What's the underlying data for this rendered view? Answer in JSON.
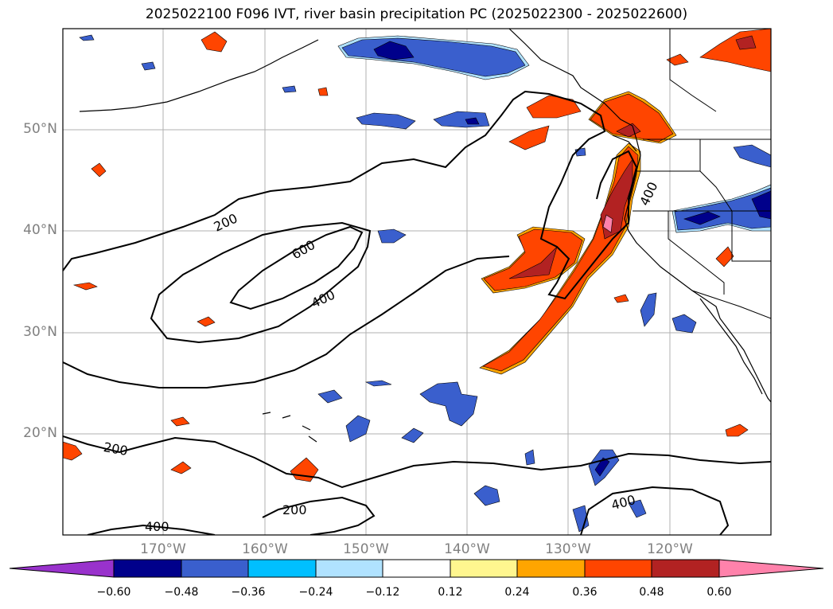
{
  "title": "2025022100 F096 IVT, river basin precipitation PC (2025022300 - 2025022600)",
  "lat_labels": [
    "50°N",
    "40°N",
    "30°N",
    "20°N"
  ],
  "lon_labels": [
    "170°W",
    "160°W",
    "150°W",
    "140°W",
    "130°W",
    "120°W"
  ],
  "contour_labels": [
    "200",
    "600",
    "400",
    "400",
    "200",
    "200",
    "400",
    "400"
  ],
  "colorbar": {
    "ticks": [
      "−0.60",
      "−0.48",
      "−0.36",
      "−0.24",
      "−0.12",
      "0.12",
      "0.24",
      "0.36",
      "0.48",
      "0.60"
    ],
    "colors": [
      "#9932cc",
      "#00008b",
      "#3a5fcd",
      "#00bfff",
      "#b0e2ff",
      "#ffffff",
      "#fff68f",
      "#ffa500",
      "#ff4500",
      "#b22222",
      "#ff82ab"
    ]
  }
}
